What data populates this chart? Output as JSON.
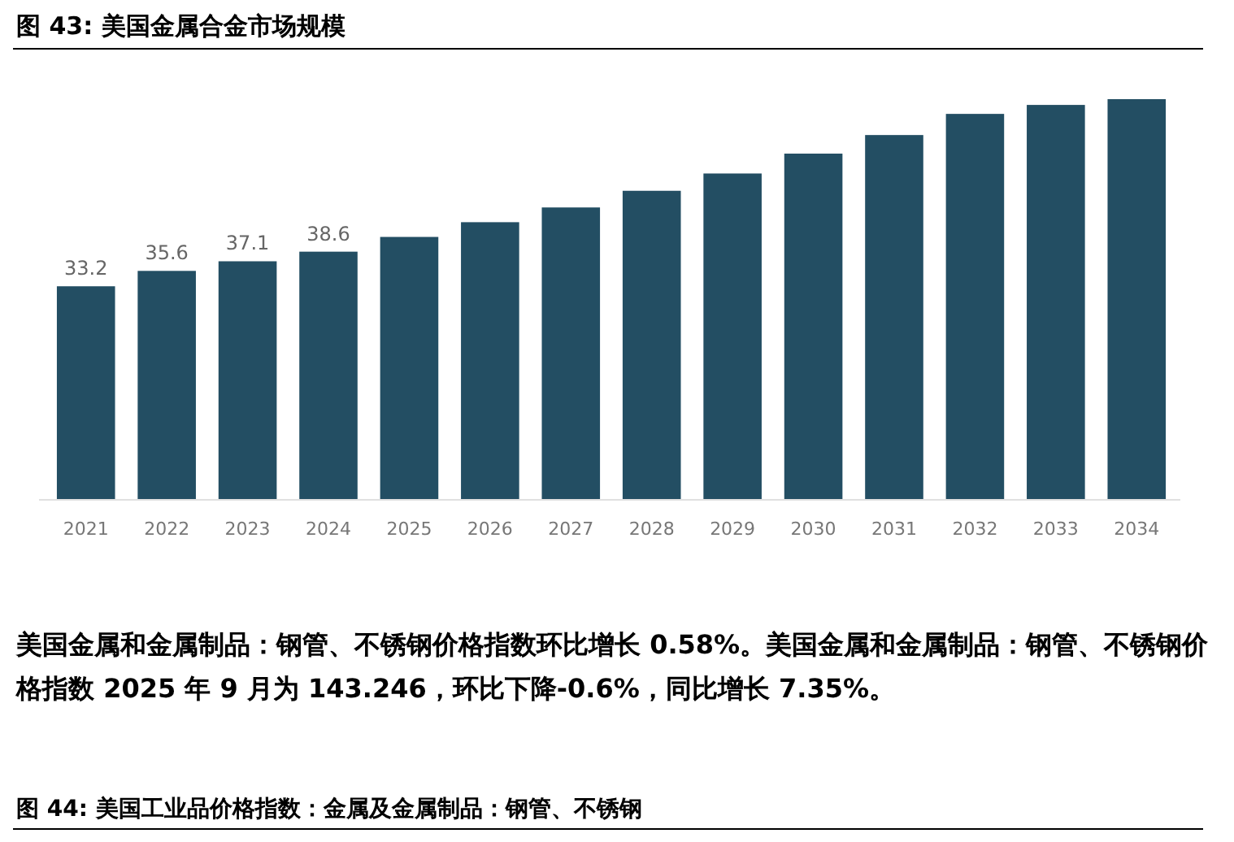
{
  "chart_data": {
    "type": "bar",
    "title": "图 43:  美国金属合金市场规模",
    "categories": [
      "2021",
      "2022",
      "2023",
      "2024",
      "2025",
      "2026",
      "2027",
      "2028",
      "2029",
      "2030",
      "2031",
      "2032",
      "2033",
      "2034"
    ],
    "values": [
      33.2,
      35.6,
      37.1,
      38.6,
      40.9,
      43.2,
      45.5,
      48.1,
      50.8,
      53.9,
      56.8,
      60.1,
      61.5,
      62.4
    ],
    "value_labels": [
      "33.2",
      "35.6",
      "37.1",
      "38.6",
      null,
      null,
      null,
      null,
      null,
      null,
      null,
      null,
      null,
      null
    ],
    "color": "#234e63",
    "annotations": [
      "美国金属和金属制品：钢管、不锈钢价格指数环比增长 0.58%。美国金属和金属制品：钢管、不锈钢价格指数 2025 年 9 月为 143.246，环比下降-0.6%，同比增长 7.35%。",
      "图 44: 美国工业品价格指数：金属及金属制品：钢管、不锈钢"
    ]
  }
}
